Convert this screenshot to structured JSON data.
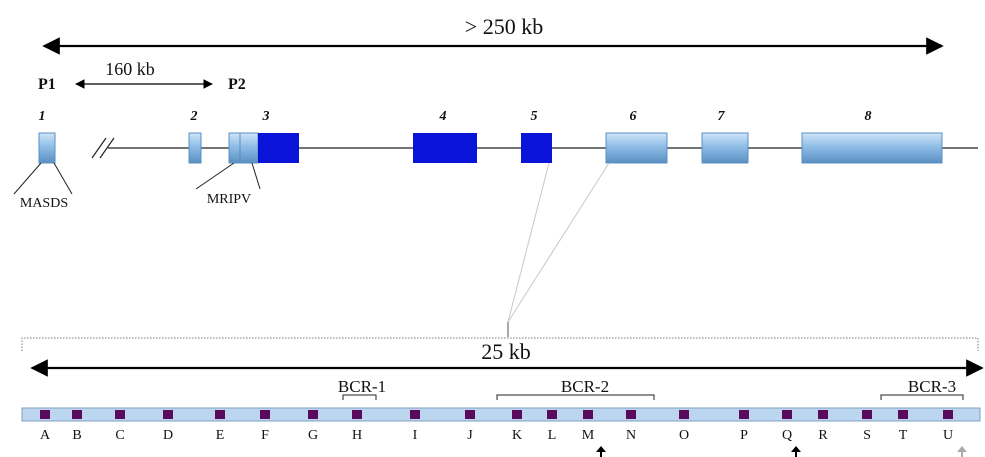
{
  "gene": {
    "total_span_label": "> 250 kb",
    "promoter_gap_label": "160 kb",
    "promoters": [
      "P1",
      "P2"
    ],
    "exons": [
      "1",
      "2",
      "3",
      "4",
      "5",
      "6",
      "7",
      "8"
    ],
    "motif_exon1": "MASDS",
    "motif_exon2": "MRIPV"
  },
  "zoom": {
    "span_label": "25 kb",
    "bcr_labels": [
      "BCR-1",
      "BCR-2",
      "BCR-3"
    ],
    "site_labels": [
      "A",
      "B",
      "C",
      "D",
      "E",
      "F",
      "G",
      "H",
      "I",
      "J",
      "K",
      "L",
      "M",
      "N",
      "O",
      "P",
      "Q",
      "R",
      "S",
      "T",
      "U"
    ]
  },
  "colors": {
    "coding_exon": "#0a14d8",
    "noncoding_exon": "#8fbde6",
    "zoom_bar": "#bcd6ef",
    "site_marker": "#5a0a5a"
  }
}
